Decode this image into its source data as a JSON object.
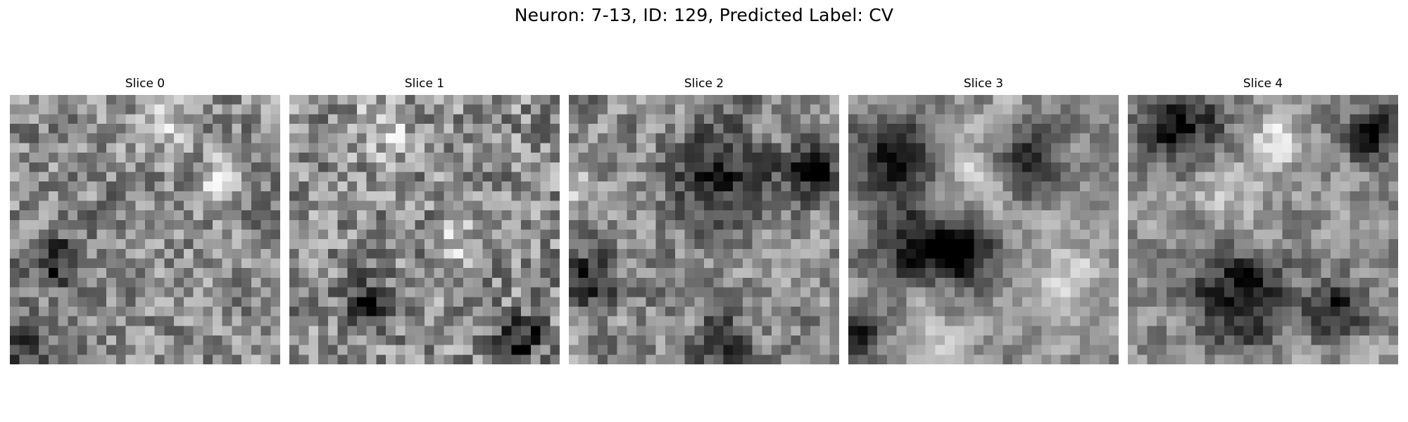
{
  "figure": {
    "title": "Neuron: 7-13, ID: 129, Predicted Label: CV",
    "colormap": "gray",
    "background": "#ffffff"
  },
  "slices": [
    {
      "title": "Slice 0",
      "seed": 11,
      "smoothing": 0.25,
      "dark_blobs": [
        [
          0.16,
          0.62,
          0.07
        ],
        [
          0.04,
          0.95,
          0.05
        ]
      ],
      "light_blobs": [
        [
          0.55,
          0.12,
          0.07
        ],
        [
          0.78,
          0.32,
          0.06
        ]
      ]
    },
    {
      "title": "Slice 1",
      "seed": 23,
      "smoothing": 0.15,
      "dark_blobs": [
        [
          0.28,
          0.78,
          0.06
        ],
        [
          0.86,
          0.9,
          0.06
        ]
      ],
      "light_blobs": [
        [
          0.35,
          0.12,
          0.08
        ],
        [
          0.62,
          0.55,
          0.06
        ]
      ]
    },
    {
      "title": "Slice 2",
      "seed": 37,
      "smoothing": 0.35,
      "dark_blobs": [
        [
          0.56,
          0.3,
          0.12
        ],
        [
          0.9,
          0.28,
          0.07
        ],
        [
          0.06,
          0.68,
          0.08
        ],
        [
          0.56,
          0.92,
          0.07
        ]
      ],
      "light_blobs": [
        [
          0.03,
          0.35,
          0.05
        ]
      ]
    },
    {
      "title": "Slice 3",
      "seed": 53,
      "smoothing": 0.6,
      "dark_blobs": [
        [
          0.2,
          0.22,
          0.11
        ],
        [
          0.66,
          0.26,
          0.09
        ],
        [
          0.26,
          0.55,
          0.12
        ],
        [
          0.44,
          0.58,
          0.08
        ],
        [
          0.05,
          0.88,
          0.08
        ]
      ],
      "light_blobs": [
        [
          0.45,
          0.33,
          0.12
        ],
        [
          0.25,
          0.9,
          0.1
        ],
        [
          0.8,
          0.7,
          0.12
        ]
      ]
    },
    {
      "title": "Slice 4",
      "seed": 71,
      "smoothing": 0.5,
      "dark_blobs": [
        [
          0.2,
          0.12,
          0.12
        ],
        [
          0.42,
          0.75,
          0.13
        ],
        [
          0.78,
          0.8,
          0.07
        ],
        [
          0.9,
          0.15,
          0.07
        ]
      ],
      "light_blobs": [
        [
          0.35,
          0.35,
          0.12
        ],
        [
          0.55,
          0.15,
          0.08
        ]
      ]
    }
  ]
}
